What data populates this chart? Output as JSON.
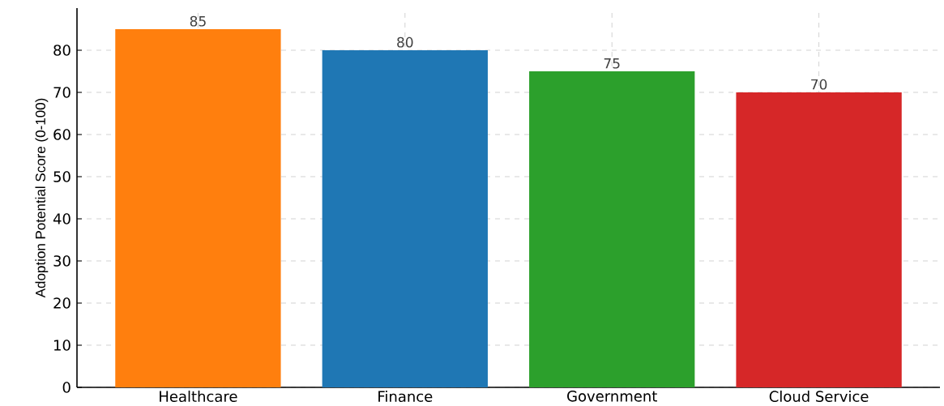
{
  "chart_data": {
    "type": "bar",
    "ylabel": "Adoption Potential Score (0-100)",
    "categories": [
      "Healthcare",
      "Finance",
      "Government",
      "Cloud Service"
    ],
    "values": [
      85,
      80,
      75,
      70
    ],
    "colors": [
      "#ff7f0e",
      "#1f77b4",
      "#2ca02c",
      "#d62728"
    ],
    "ylim": [
      0,
      90
    ],
    "yticks": [
      0,
      10,
      20,
      30,
      40,
      50,
      60,
      70,
      80
    ],
    "grid": true,
    "data_labels": true
  }
}
